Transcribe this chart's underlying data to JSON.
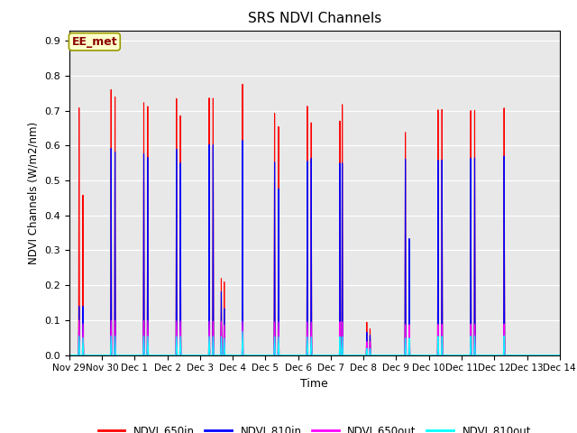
{
  "title": "SRS NDVI Channels",
  "xlabel": "Time",
  "ylabel": "NDVI Channels (W/m2/nm)",
  "ylim": [
    0.0,
    0.93
  ],
  "annotation_text": "EE_met",
  "legend_entries": [
    "NDVI_650in",
    "NDVI_810in",
    "NDVI_650out",
    "NDVI_810out"
  ],
  "legend_colors": [
    "red",
    "blue",
    "magenta",
    "cyan"
  ],
  "line_colors": {
    "NDVI_650in": "red",
    "NDVI_810in": "blue",
    "NDVI_650out": "magenta",
    "NDVI_810out": "cyan"
  },
  "xtick_labels": [
    "Nov 29",
    "Nov 30",
    "Dec 1",
    "Dec 2",
    "Dec 3",
    "Dec 4",
    "Dec 5",
    "Dec 6",
    "Dec 7",
    "Dec 8",
    "Dec 9",
    "Dec 10",
    "Dec 11",
    "Dec 12",
    "Dec 13",
    "Dec 14"
  ],
  "xtick_positions": [
    0,
    1,
    2,
    3,
    4,
    5,
    6,
    7,
    8,
    9,
    10,
    11,
    12,
    13,
    14,
    15
  ],
  "background_color": "#e8e8e8",
  "plot_background": "#e8e8e8",
  "fig_background": "#ffffff",
  "grid_color": "white",
  "spike_centers_650in": [
    [
      0.3,
      0.71
    ],
    [
      0.42,
      0.46
    ],
    [
      1.28,
      0.77
    ],
    [
      1.4,
      0.75
    ],
    [
      2.28,
      0.74
    ],
    [
      2.4,
      0.73
    ],
    [
      3.28,
      0.76
    ],
    [
      3.4,
      0.71
    ],
    [
      4.28,
      0.77
    ],
    [
      4.4,
      0.77
    ],
    [
      4.65,
      0.23
    ],
    [
      4.74,
      0.22
    ],
    [
      5.3,
      0.82
    ],
    [
      6.28,
      0.74
    ],
    [
      6.4,
      0.7
    ],
    [
      7.28,
      0.77
    ],
    [
      7.4,
      0.72
    ],
    [
      8.28,
      0.72
    ],
    [
      8.35,
      0.77
    ],
    [
      9.1,
      0.1
    ],
    [
      9.2,
      0.08
    ],
    [
      10.28,
      0.67
    ],
    [
      10.4,
      0.26
    ],
    [
      11.28,
      0.73
    ],
    [
      11.4,
      0.73
    ],
    [
      12.28,
      0.72
    ],
    [
      12.4,
      0.72
    ],
    [
      13.3,
      0.72
    ]
  ],
  "spike_centers_810in": [
    [
      0.3,
      0.14
    ],
    [
      0.42,
      0.14
    ],
    [
      1.28,
      0.6
    ],
    [
      1.4,
      0.59
    ],
    [
      2.28,
      0.59
    ],
    [
      2.4,
      0.58
    ],
    [
      3.28,
      0.61
    ],
    [
      3.4,
      0.57
    ],
    [
      4.28,
      0.63
    ],
    [
      4.4,
      0.63
    ],
    [
      4.65,
      0.19
    ],
    [
      4.74,
      0.14
    ],
    [
      5.3,
      0.65
    ],
    [
      6.28,
      0.59
    ],
    [
      6.4,
      0.51
    ],
    [
      7.28,
      0.6
    ],
    [
      7.4,
      0.61
    ],
    [
      8.28,
      0.59
    ],
    [
      8.35,
      0.59
    ],
    [
      9.1,
      0.07
    ],
    [
      9.2,
      0.06
    ],
    [
      10.28,
      0.59
    ],
    [
      10.4,
      0.35
    ],
    [
      11.28,
      0.58
    ],
    [
      11.4,
      0.58
    ],
    [
      12.28,
      0.58
    ],
    [
      12.4,
      0.58
    ],
    [
      13.3,
      0.58
    ]
  ],
  "spike_centers_650out": [
    [
      0.3,
      0.1
    ],
    [
      0.42,
      0.09
    ],
    [
      1.28,
      0.1
    ],
    [
      1.4,
      0.1
    ],
    [
      2.28,
      0.1
    ],
    [
      2.4,
      0.1
    ],
    [
      3.28,
      0.1
    ],
    [
      3.4,
      0.1
    ],
    [
      4.28,
      0.1
    ],
    [
      4.4,
      0.1
    ],
    [
      4.65,
      0.1
    ],
    [
      4.74,
      0.09
    ],
    [
      5.3,
      0.1
    ],
    [
      6.28,
      0.1
    ],
    [
      6.4,
      0.1
    ],
    [
      7.28,
      0.1
    ],
    [
      7.4,
      0.1
    ],
    [
      8.28,
      0.1
    ],
    [
      8.35,
      0.1
    ],
    [
      9.1,
      0.04
    ],
    [
      9.2,
      0.04
    ],
    [
      10.28,
      0.09
    ],
    [
      10.4,
      0.09
    ],
    [
      11.28,
      0.09
    ],
    [
      11.4,
      0.09
    ],
    [
      12.28,
      0.09
    ],
    [
      12.4,
      0.09
    ],
    [
      13.3,
      0.09
    ]
  ],
  "spike_centers_810out": [
    [
      0.3,
      0.055
    ],
    [
      0.42,
      0.05
    ],
    [
      1.28,
      0.055
    ],
    [
      1.4,
      0.055
    ],
    [
      2.28,
      0.055
    ],
    [
      2.4,
      0.055
    ],
    [
      3.28,
      0.055
    ],
    [
      3.4,
      0.055
    ],
    [
      4.28,
      0.055
    ],
    [
      4.4,
      0.055
    ],
    [
      4.65,
      0.055
    ],
    [
      4.74,
      0.05
    ],
    [
      5.3,
      0.07
    ],
    [
      6.28,
      0.055
    ],
    [
      6.4,
      0.055
    ],
    [
      7.28,
      0.055
    ],
    [
      7.4,
      0.055
    ],
    [
      8.28,
      0.055
    ],
    [
      8.35,
      0.055
    ],
    [
      9.1,
      0.02
    ],
    [
      9.2,
      0.02
    ],
    [
      10.28,
      0.05
    ],
    [
      10.4,
      0.05
    ],
    [
      11.28,
      0.055
    ],
    [
      11.4,
      0.055
    ],
    [
      12.28,
      0.055
    ],
    [
      12.4,
      0.055
    ],
    [
      13.3,
      0.055
    ]
  ]
}
